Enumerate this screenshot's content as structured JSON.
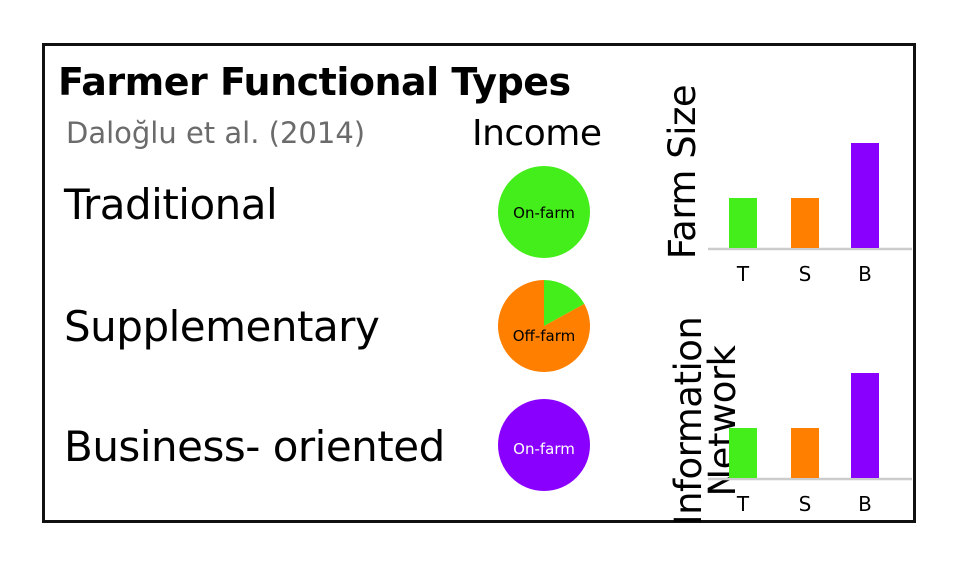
{
  "title": "Farmer Functional Types",
  "citation": "Daloğlu et al. (2014)",
  "income_header": "Income",
  "types": [
    {
      "label": "Traditional",
      "income_label": "On-farm",
      "pie": [
        {
          "share": 1.0,
          "color": "#44ee1a"
        }
      ],
      "label_color": "#000000"
    },
    {
      "label": "Supplementary",
      "income_label": "Off-farm",
      "pie": [
        {
          "share": 0.17,
          "color": "#44ee1a"
        },
        {
          "share": 0.83,
          "color": "#ff8000"
        }
      ],
      "label_color": "#000000"
    },
    {
      "label": "Business- oriented",
      "income_label": "On-farm",
      "pie": [
        {
          "share": 1.0,
          "color": "#8a00ff"
        }
      ],
      "label_color": "#ffffff"
    }
  ],
  "colors": {
    "traditional": "#44ee1a",
    "supplementary": "#ff8000",
    "business": "#8a00ff",
    "axis": "#cccccc"
  },
  "chart_data": [
    {
      "type": "bar",
      "ylabel": "Farm Size",
      "categories": [
        "T",
        "S",
        "B"
      ],
      "values": [
        1,
        1,
        2.1
      ],
      "colors": [
        "#44ee1a",
        "#ff8000",
        "#8a00ff"
      ]
    },
    {
      "type": "bar",
      "ylabel": "Information Network",
      "ylabel_lines": [
        "Information",
        "Network"
      ],
      "categories": [
        "T",
        "S",
        "B"
      ],
      "values": [
        1,
        1,
        2.1
      ],
      "colors": [
        "#44ee1a",
        "#ff8000",
        "#8a00ff"
      ]
    }
  ]
}
